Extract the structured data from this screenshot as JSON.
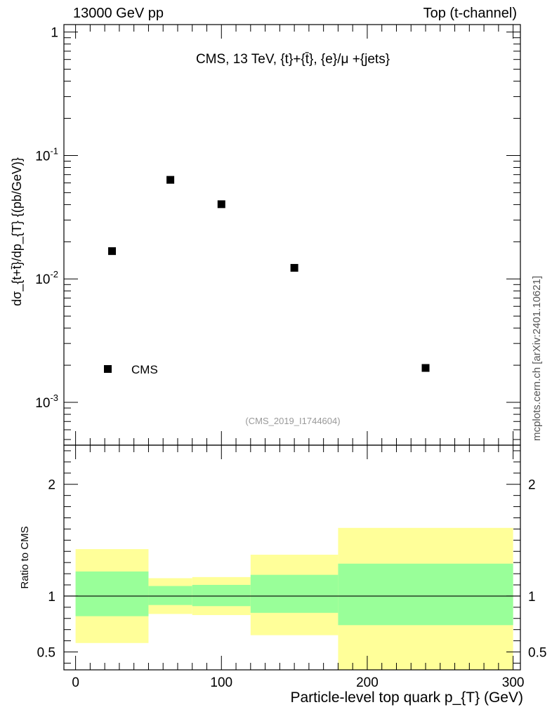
{
  "header": {
    "left": "13000 GeV pp",
    "right": "Top (t-channel)"
  },
  "watermark": "mcplots.cern.ch [arXiv:2401.10621]",
  "chart_data": [
    {
      "type": "scatter",
      "title": "CMS, 13 TeV, {t}+{t̄}, {e}/μ +{jets}",
      "analysis_tag": "(CMS_2019_I1744604)",
      "xlabel": "Particle-level top quark p_{T} (GeV)",
      "ylabel": "dσ_{t+t̄}/dp_{T} {(pb/GeV)}",
      "yscale": "log",
      "xlim": [
        -8,
        305
      ],
      "ylim": [
        0.00045,
        1.15
      ],
      "ytick_labels": [
        "10^{-3}",
        "10^{-2}",
        "10^{-1}",
        "1"
      ],
      "legend": {
        "label": "CMS",
        "position": "bottom-left"
      },
      "series": [
        {
          "name": "CMS",
          "x": [
            25,
            65,
            100,
            150,
            240
          ],
          "y": [
            0.0168,
            0.0635,
            0.0403,
            0.0123,
            0.0019
          ]
        }
      ]
    },
    {
      "type": "area",
      "ylabel": "Ratio to CMS",
      "xlim": [
        -8,
        305
      ],
      "ylim": [
        0.34,
        2.35
      ],
      "ytick_labels": [
        "0.5",
        "1",
        "2"
      ],
      "xtick_labels": [
        "0",
        "100",
        "200",
        "300"
      ],
      "reference_line": 1,
      "bands": [
        {
          "x_low": 0,
          "x_high": 50,
          "inner_low": 0.82,
          "inner_high": 1.22,
          "outer_low": 0.58,
          "outer_high": 1.42
        },
        {
          "x_low": 50,
          "x_high": 80,
          "inner_low": 0.92,
          "inner_high": 1.09,
          "outer_low": 0.84,
          "outer_high": 1.16
        },
        {
          "x_low": 80,
          "x_high": 120,
          "inner_low": 0.91,
          "inner_high": 1.1,
          "outer_low": 0.83,
          "outer_high": 1.17
        },
        {
          "x_low": 120,
          "x_high": 180,
          "inner_low": 0.85,
          "inner_high": 1.19,
          "outer_low": 0.65,
          "outer_high": 1.37
        },
        {
          "x_low": 180,
          "x_high": 300,
          "inner_low": 0.74,
          "inner_high": 1.29,
          "outer_low": 0.34,
          "outer_high": 1.61
        }
      ],
      "colors": {
        "inner": "#99ff99",
        "outer": "#ffff99"
      }
    }
  ]
}
